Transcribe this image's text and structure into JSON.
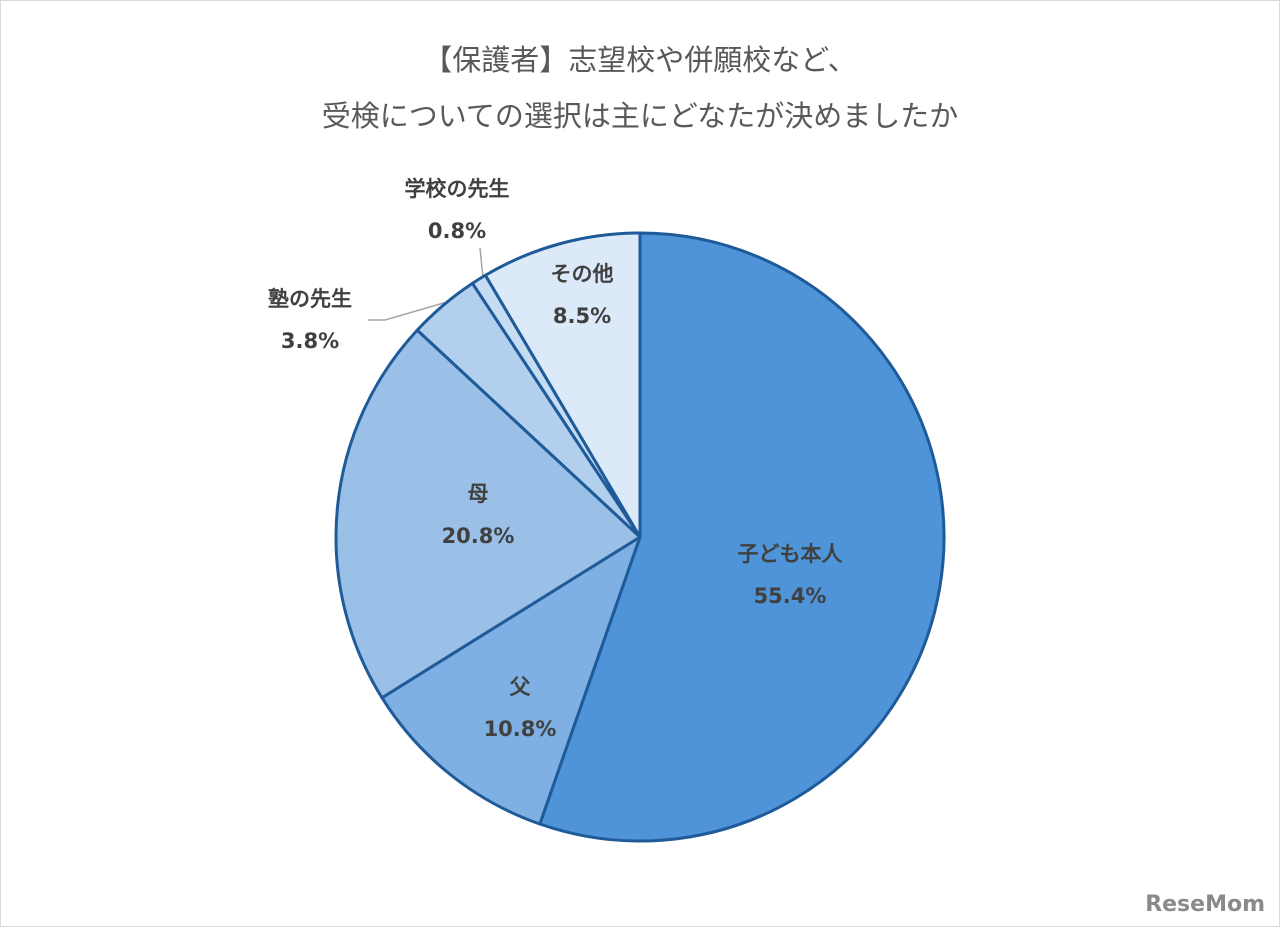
{
  "chart_data": {
    "type": "pie",
    "title": [
      "【保護者】志望校や併願校など、",
      "受検についての選択は主にどなたが決めましたか"
    ],
    "categories": [
      "子ども本人",
      "父",
      "母",
      "塾の先生",
      "学校の先生",
      "その他"
    ],
    "values": [
      55.4,
      10.8,
      20.8,
      3.8,
      0.8,
      8.5
    ],
    "value_labels": [
      "55.4%",
      "10.8%",
      "20.8%",
      "3.8%",
      "0.8%",
      "8.5%"
    ],
    "colors": [
      "#4f94d8",
      "#7eb0e3",
      "#9bc0e8",
      "#b3cfee",
      "#c6dcf3",
      "#dce9f8"
    ],
    "edge_color": "#1f5a99"
  },
  "watermark": "ReseMom"
}
